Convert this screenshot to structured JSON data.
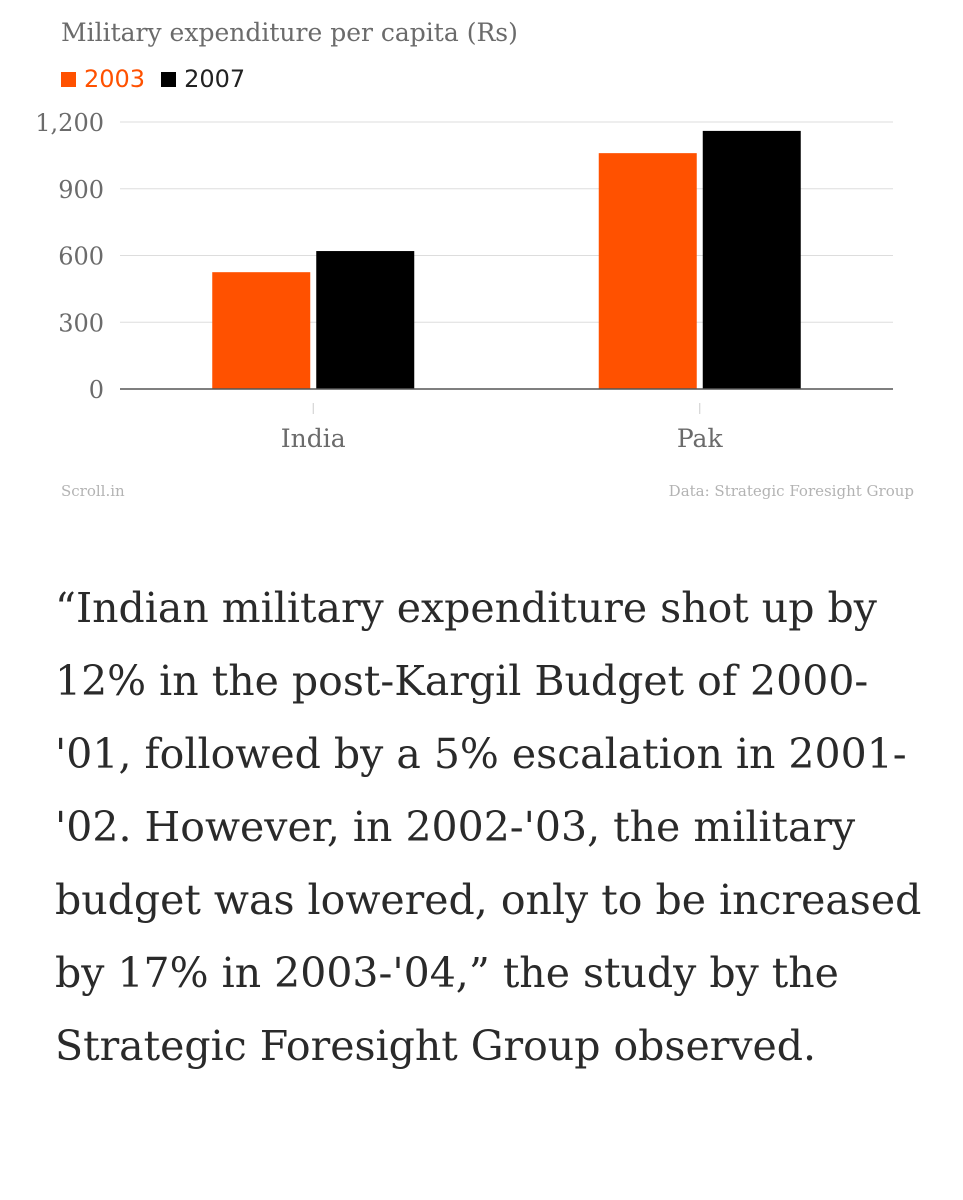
{
  "chart_data": {
    "type": "bar",
    "title": "Military expenditure per capita (Rs)",
    "categories": [
      "India",
      "Pak"
    ],
    "series": [
      {
        "name": "2003",
        "values": [
          525,
          1060
        ],
        "color": "#ff5100"
      },
      {
        "name": "2007",
        "values": [
          620,
          1160
        ],
        "color": "#000000"
      }
    ],
    "ylim": [
      0,
      1200
    ],
    "yticks": [
      0,
      300,
      600,
      900,
      1200
    ],
    "ytick_labels": [
      "0",
      "300",
      "600",
      "900",
      "1,200"
    ],
    "grid": true,
    "legend_position": "top-left",
    "xlabel": "",
    "ylabel": ""
  },
  "credits": {
    "publisher": "Scroll.in",
    "source": "Data: Strategic Foresight Group"
  },
  "quote": {
    "text": "“Indian military expenditure shot up by 12% in the post-Kargil Budget of 2000-'01, followed by a 5% escalation in 2001-'02. However, in 2002-'03, the military budget was lowered, only to be increased by 17% in 2003-'04,” the study by the Strategic Foresight Group observed."
  },
  "colors": {
    "series_2003": "#ff5100",
    "series_2007": "#000000",
    "grid": "#dddddd",
    "axis_text": "#6b6b6b"
  }
}
